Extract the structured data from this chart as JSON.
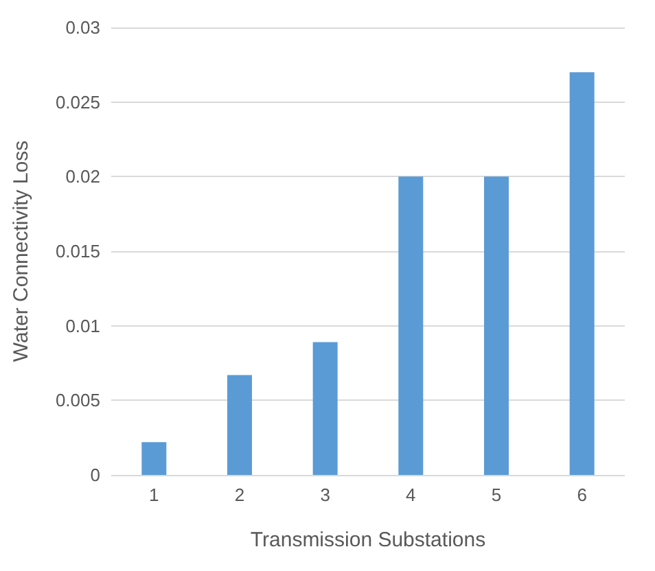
{
  "chart_data": {
    "type": "bar",
    "xlabel": "Transmission Substations",
    "ylabel": "Water Connectivity Loss",
    "categories": [
      "1",
      "2",
      "3",
      "4",
      "5",
      "6"
    ],
    "values": [
      0.0022,
      0.0067,
      0.0089,
      0.02,
      0.02,
      0.027
    ],
    "color": "#5b9bd5",
    "ylim": [
      0,
      0.03
    ],
    "yticks": [
      0,
      0.005,
      0.01,
      0.015,
      0.02,
      0.025,
      0.03
    ],
    "grid": "y"
  }
}
